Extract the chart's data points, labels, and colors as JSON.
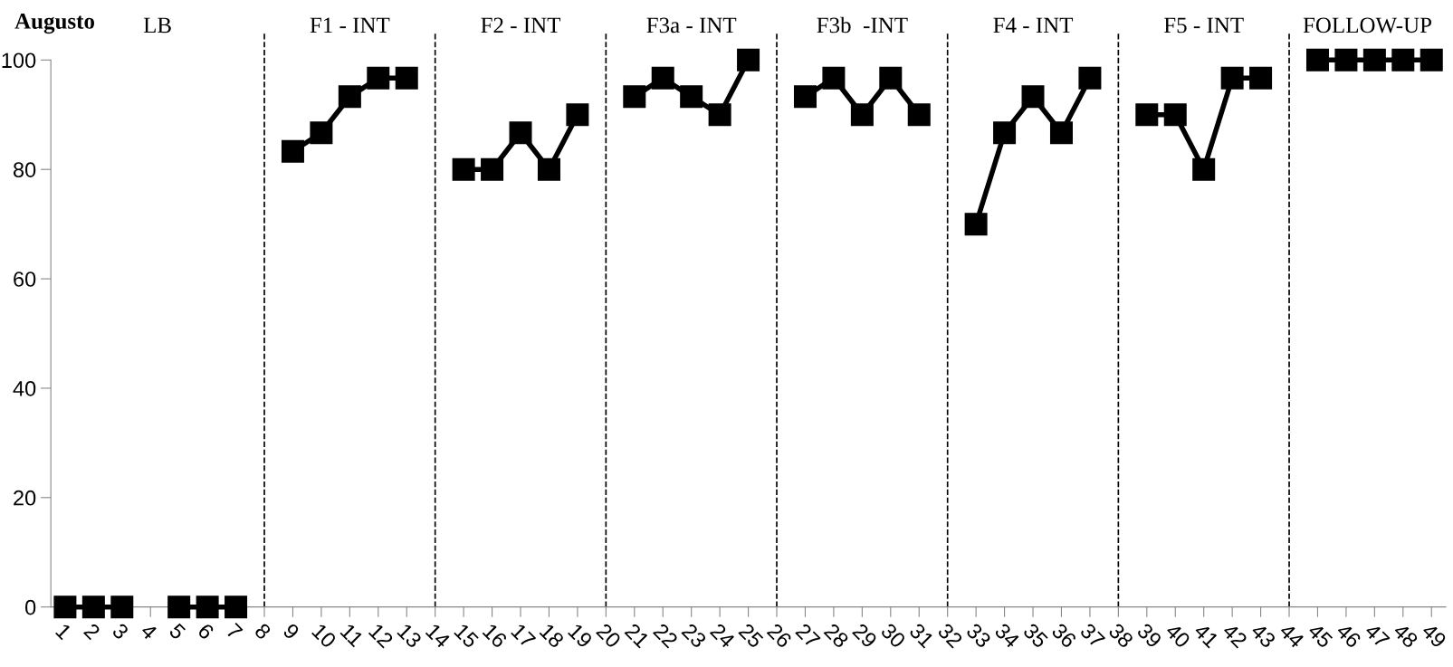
{
  "chart_data": {
    "type": "line",
    "title": "Augusto",
    "x": [
      1,
      2,
      3,
      4,
      5,
      6,
      7,
      8,
      9,
      10,
      11,
      12,
      13,
      14,
      15,
      16,
      17,
      18,
      19,
      20,
      21,
      22,
      23,
      24,
      25,
      26,
      27,
      28,
      29,
      30,
      31,
      32,
      33,
      34,
      35,
      36,
      37,
      38,
      39,
      40,
      41,
      42,
      43,
      44,
      45,
      46,
      47,
      48,
      49
    ],
    "series": [
      {
        "color": "#000000",
        "values": [
          0,
          0,
          0,
          null,
          0,
          0,
          0,
          null,
          83.3,
          86.7,
          93.3,
          96.7,
          96.7,
          null,
          80,
          80,
          86.7,
          80,
          90,
          null,
          93.3,
          96.7,
          93.3,
          90,
          100,
          null,
          93.3,
          96.7,
          90,
          96.7,
          90,
          null,
          70,
          86.7,
          93.3,
          86.7,
          96.7,
          null,
          90,
          90,
          80,
          96.7,
          96.7,
          null,
          100,
          100,
          100,
          100,
          100
        ]
      }
    ],
    "annotations": [
      "LB",
      "F1 - INT",
      "F2 - INT",
      "F3a - INT",
      "F3b  -INT",
      "F4 - INT",
      "F5 - INT",
      "FOLLOW-UP"
    ],
    "ref_lines": [
      {
        "axis": "x",
        "value": 8,
        "color": "#000000",
        "line_style": "dashed"
      },
      {
        "axis": "x",
        "value": 14,
        "color": "#000000",
        "line_style": "dashed"
      },
      {
        "axis": "x",
        "value": 20,
        "color": "#000000",
        "line_style": "dashed"
      },
      {
        "axis": "x",
        "value": 26,
        "color": "#000000",
        "line_style": "dashed"
      },
      {
        "axis": "x",
        "value": 32,
        "color": "#000000",
        "line_style": "dashed"
      },
      {
        "axis": "x",
        "value": 38,
        "color": "#000000",
        "line_style": "dashed"
      },
      {
        "axis": "x",
        "value": 44,
        "color": "#000000",
        "line_style": "dashed"
      }
    ],
    "xlim": [
      0.5,
      49.5
    ],
    "xticks": [
      1,
      2,
      3,
      4,
      5,
      6,
      7,
      8,
      9,
      10,
      11,
      12,
      13,
      14,
      15,
      16,
      17,
      18,
      19,
      20,
      21,
      22,
      23,
      24,
      25,
      26,
      27,
      28,
      29,
      30,
      31,
      32,
      33,
      34,
      35,
      36,
      37,
      38,
      39,
      40,
      41,
      42,
      43,
      44,
      45,
      46,
      47,
      48,
      49
    ],
    "ylim": [
      0,
      100
    ],
    "yticks": [
      0,
      20,
      40,
      60,
      80,
      100
    ],
    "grid": false,
    "legend": false,
    "marker": "square",
    "line_style": "solid"
  }
}
